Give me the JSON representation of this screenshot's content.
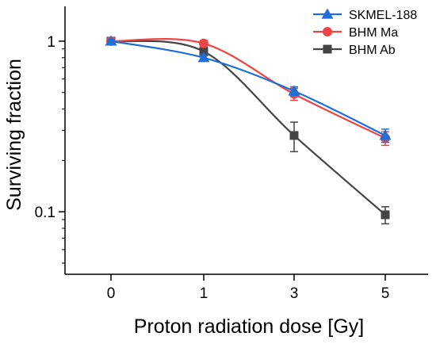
{
  "chart_data": {
    "type": "line",
    "xlabel": "Proton radiation dose [Gy]",
    "ylabel": "Surviving fraction",
    "x_categories": [
      "0",
      "1",
      "3",
      "5"
    ],
    "y_scale": "log",
    "ylim": [
      0.043,
      1.6
    ],
    "y_ticks": [
      {
        "value": 0.1,
        "label": "0.1"
      },
      {
        "value": 1,
        "label": "1"
      }
    ],
    "grid": false,
    "legend_position": "top-right",
    "series": [
      {
        "name": "SKMEL-188",
        "color": "#1f6fd6",
        "marker": "triangle",
        "values": [
          1.0,
          0.8,
          0.51,
          0.28
        ],
        "errors": [
          0.02,
          0.03,
          0.03,
          0.025
        ]
      },
      {
        "name": "BHM Ma",
        "color": "#ef4444",
        "marker": "circle",
        "values": [
          1.0,
          0.97,
          0.49,
          0.27
        ],
        "errors": [
          0.02,
          0.04,
          0.04,
          0.025
        ]
      },
      {
        "name": "BHM Ab",
        "color": "#444444",
        "marker": "square",
        "values": [
          1.0,
          0.87,
          0.28,
          0.096
        ],
        "errors": [
          0.02,
          0.05,
          0.055,
          0.011
        ]
      }
    ]
  }
}
